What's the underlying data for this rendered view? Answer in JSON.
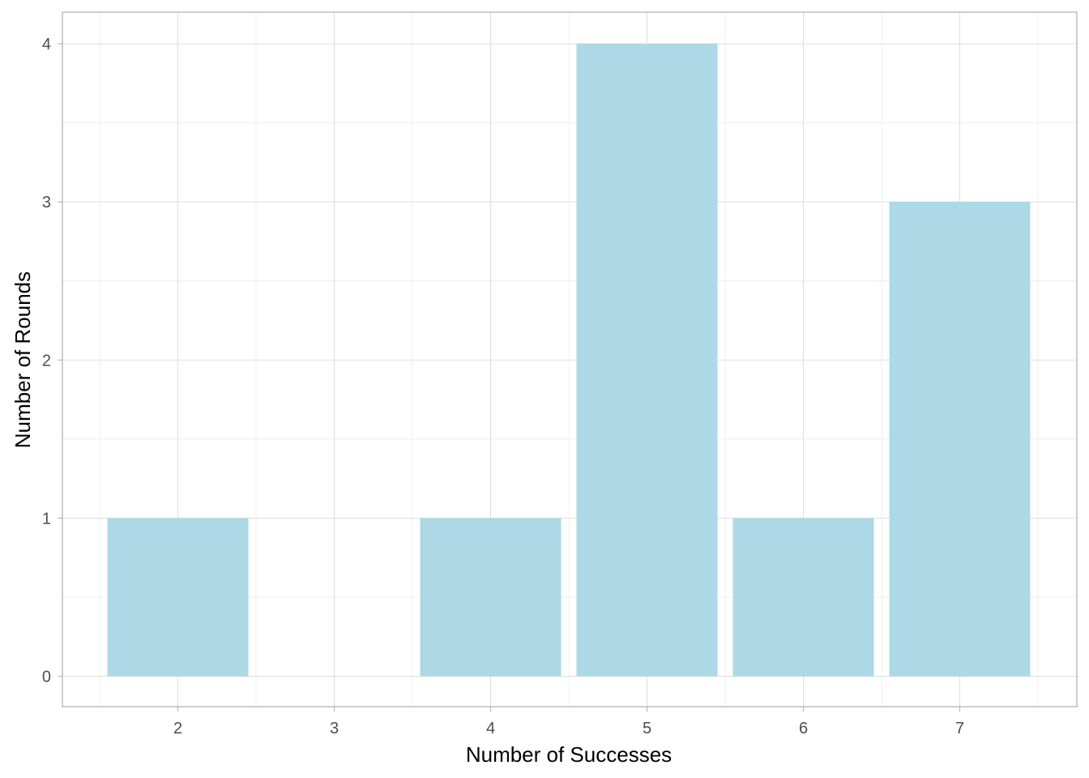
{
  "chart_data": {
    "type": "bar",
    "categories": [
      "2",
      "3",
      "4",
      "5",
      "6",
      "7"
    ],
    "values": [
      1,
      0,
      1,
      4,
      1,
      3
    ],
    "title": "",
    "xlabel": "Number of Successes",
    "ylabel": "Number of Rounds",
    "ylim": [
      0,
      4
    ],
    "yticks": [
      "0",
      "1",
      "2",
      "3",
      "4"
    ],
    "grid": true,
    "bar_color": "#add8e6",
    "theme": "light"
  }
}
